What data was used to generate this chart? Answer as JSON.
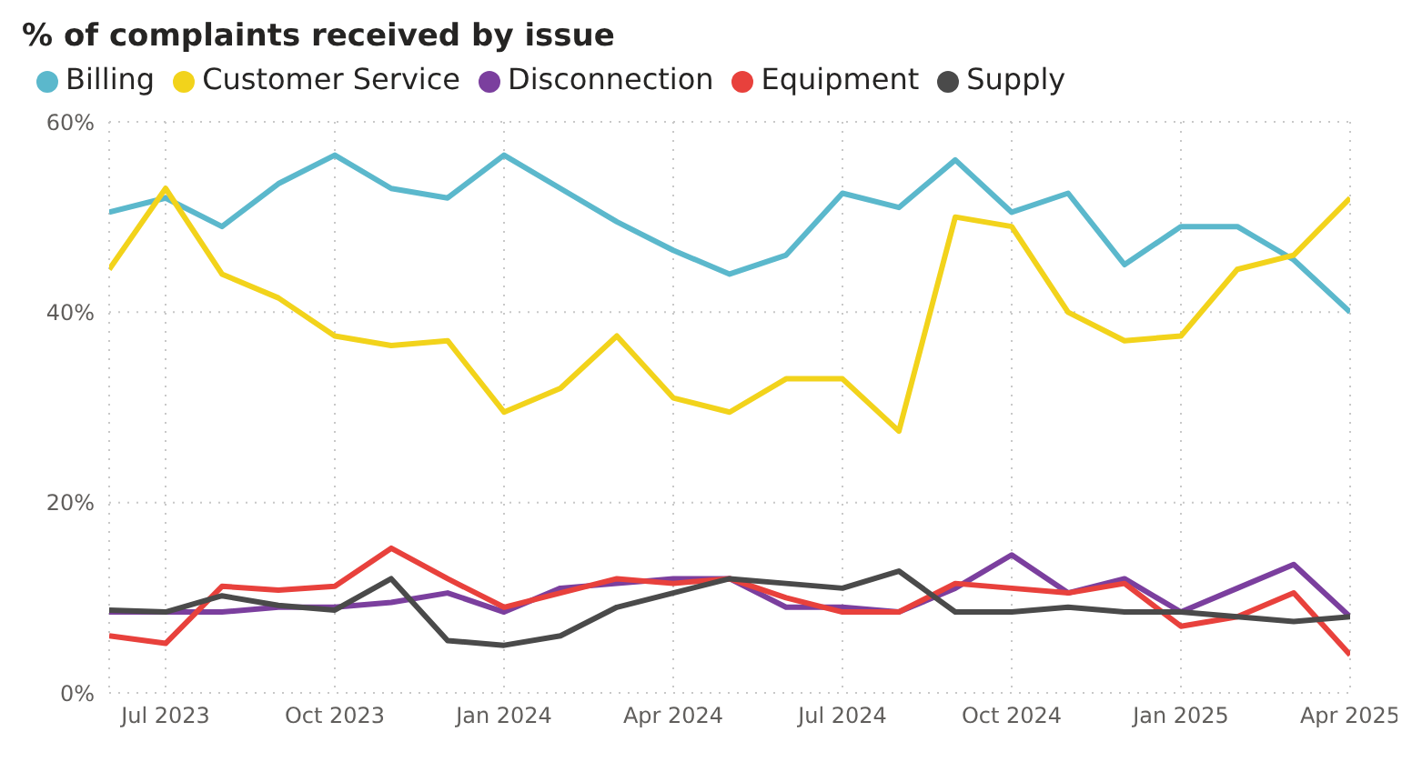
{
  "chart_data": {
    "type": "line",
    "title": "% of complaints received by issue",
    "x": [
      "2023-06",
      "2023-07",
      "2023-08",
      "2023-09",
      "2023-10",
      "2023-11",
      "2023-12",
      "2024-01",
      "2024-02",
      "2024-03",
      "2024-04",
      "2024-05",
      "2024-06",
      "2024-07",
      "2024-08",
      "2024-09",
      "2024-10",
      "2024-11",
      "2024-12",
      "2025-01",
      "2025-02",
      "2025-03",
      "2025-04"
    ],
    "series": [
      {
        "name": "Billing",
        "color": "#5bb8cc",
        "values": [
          50.5,
          52,
          49,
          53.5,
          56.5,
          53,
          52,
          56.5,
          53,
          49.5,
          46.5,
          44,
          46,
          52.5,
          51,
          56,
          50.5,
          52.5,
          45,
          49,
          49,
          45.5,
          40
        ]
      },
      {
        "name": "Customer Service",
        "color": "#f2d31b",
        "values": [
          44.5,
          53,
          44,
          41.5,
          37.5,
          36.5,
          37,
          29.5,
          32,
          37.5,
          31,
          29.5,
          33,
          33,
          27.5,
          50,
          49,
          40,
          37,
          37.5,
          44.5,
          46,
          52
        ]
      },
      {
        "name": "Disconnection",
        "color": "#7b3f9e",
        "values": [
          8.5,
          8.5,
          8.5,
          9,
          9,
          9.5,
          10.5,
          8.5,
          11,
          11.5,
          12,
          12,
          9,
          9,
          8.5,
          11,
          14.5,
          10.5,
          12,
          8.5,
          11,
          13.5,
          8
        ]
      },
      {
        "name": "Equipment",
        "color": "#e8413c",
        "values": [
          6,
          5.2,
          11.2,
          10.8,
          11.2,
          15.2,
          12,
          9,
          10.5,
          12,
          11.5,
          12,
          10,
          8.5,
          8.5,
          11.5,
          11,
          10.5,
          11.5,
          7,
          8,
          10.5,
          4
        ]
      },
      {
        "name": "Supply",
        "color": "#4a4a4a",
        "values": [
          8.7,
          8.5,
          10.2,
          9.2,
          8.7,
          12,
          5.5,
          5,
          6,
          9,
          10.5,
          12,
          11.5,
          11,
          12.8,
          8.5,
          8.5,
          9,
          8.5,
          8.5,
          8,
          7.5,
          8
        ]
      }
    ],
    "xlim": [
      "2023-06",
      "2025-04"
    ],
    "xticks": [
      {
        "value": "2023-07",
        "label": "Jul 2023"
      },
      {
        "value": "2023-10",
        "label": "Oct 2023"
      },
      {
        "value": "2024-01",
        "label": "Jan 2024"
      },
      {
        "value": "2024-04",
        "label": "Apr 2024"
      },
      {
        "value": "2024-07",
        "label": "Jul 2024"
      },
      {
        "value": "2024-10",
        "label": "Oct 2024"
      },
      {
        "value": "2025-01",
        "label": "Jan 2025"
      },
      {
        "value": "2025-04",
        "label": "Apr 2025"
      }
    ],
    "ylim": [
      0,
      60
    ],
    "yticks": [
      {
        "value": 0,
        "label": "0%"
      },
      {
        "value": 20,
        "label": "20%"
      },
      {
        "value": 40,
        "label": "40%"
      },
      {
        "value": 60,
        "label": "60%"
      }
    ],
    "grid": true,
    "legend": "top left",
    "marker": "none",
    "line_style": "solid"
  }
}
